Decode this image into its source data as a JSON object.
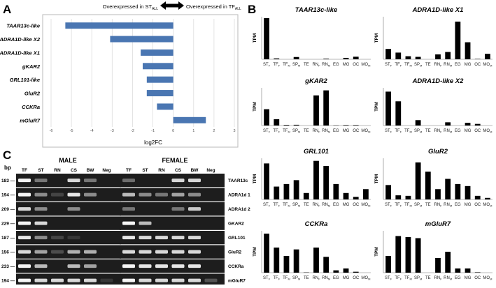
{
  "panelA": {
    "letter": "A",
    "legend_left": "Overexpressed in ST",
    "legend_left_sub": "ALL",
    "legend_right": "Overexpressed in TF",
    "legend_right_sub": "ALL",
    "xlabel": "log2FC",
    "chart_data": {
      "type": "bar",
      "orientation": "horizontal",
      "categories": [
        "TAAR13c-like",
        "ADRA1D-like X2",
        "ADRA1D-like X1",
        "gKAR2",
        "GRL101-like",
        "GluR2",
        "CCKRa",
        "mGluR7"
      ],
      "values": [
        -5.3,
        -3.1,
        -1.6,
        -1.5,
        -1.3,
        -1.3,
        -0.8,
        1.6
      ],
      "xlim": [
        -6,
        3
      ],
      "xticks": [
        "-6",
        "-5",
        "-4",
        "-3",
        "-2",
        "-1",
        "0",
        "1",
        "2",
        "3"
      ],
      "color": "#4a76b2",
      "grid": true
    }
  },
  "panelB": {
    "letter": "B",
    "ylabel": "TPM",
    "xlabels": [
      "ST",
      "TF",
      "TF",
      "SP",
      "TE",
      "RN",
      "RN",
      "EG",
      "MG",
      "OC",
      "MO"
    ],
    "xlabel_subs": [
      "F",
      "F",
      "M",
      "M",
      "",
      "F",
      "M",
      "",
      "",
      "",
      "M"
    ],
    "bar_color": "#000000",
    "charts": [
      {
        "title": "TAAR13c-like",
        "values": [
          14.5,
          0.3,
          0,
          0.8,
          0,
          0,
          0.2,
          0,
          0.5,
          0.9,
          0
        ],
        "ymax": 15
      },
      {
        "title": "ADRA1D-like X1",
        "values": [
          8.5,
          5.5,
          2.5,
          2,
          0,
          4,
          6,
          31,
          14,
          0.3,
          4.5
        ],
        "ymax": 35
      },
      {
        "title": "gKAR2",
        "values": [
          13,
          5,
          0.5,
          0.6,
          0,
          24,
          28,
          0.2,
          0.4,
          0.4,
          0
        ],
        "ymax": 30
      },
      {
        "title": "ADRA1D-like X2",
        "values": [
          6.3,
          4.5,
          0,
          1,
          0,
          0,
          0.6,
          0,
          0.5,
          0.3,
          0
        ],
        "ymax": 7
      },
      {
        "title": "GRL101",
        "values": [
          14,
          5,
          6,
          7.5,
          2.5,
          15,
          13,
          6,
          2.5,
          1,
          4
        ],
        "ymax": 16
      },
      {
        "title": "GluR2",
        "values": [
          14,
          4,
          3.5,
          36,
          27,
          10,
          20,
          15,
          13,
          3.5,
          1.5
        ],
        "ymax": 40
      },
      {
        "title": "CCKRa",
        "values": [
          42,
          27,
          18,
          25,
          0.3,
          27,
          17,
          2.5,
          4.5,
          1,
          0
        ],
        "ymax": 45
      },
      {
        "title": "mGluR7",
        "values": [
          8,
          17.5,
          17,
          16.5,
          0,
          7,
          10,
          2,
          2,
          0.2,
          0
        ],
        "ymax": 20
      }
    ]
  },
  "panelC": {
    "letter": "C",
    "bp_label": "bp",
    "male_title": "MALE",
    "female_title": "FEMALE",
    "lanes": [
      "TF",
      "ST",
      "RN",
      "CS",
      "BW",
      "Neg"
    ],
    "rows": [
      {
        "bp": "183",
        "gene": "TAAR13c",
        "male": [
          1,
          0.5,
          0,
          0.9,
          0.5,
          0
        ],
        "female": [
          0.45,
          0,
          0,
          0.9,
          0.9,
          0
        ]
      },
      {
        "bp": "194",
        "gene": "ADRA1d  1",
        "male": [
          1,
          0.6,
          0.2,
          0.95,
          0.6,
          0
        ],
        "female": [
          0.8,
          0.6,
          0.5,
          0.7,
          0.6,
          0
        ]
      },
      {
        "bp": "209",
        "gene": "ADRA1d  2",
        "male": [
          0.9,
          0.6,
          0,
          0.6,
          0,
          0
        ],
        "female": [
          0.5,
          0,
          0,
          0.5,
          0.85,
          0
        ]
      },
      {
        "bp": "229",
        "gene": "GKAR2",
        "male": [
          1,
          0.9,
          0,
          0,
          0,
          0
        ],
        "female": [
          1,
          0.8,
          0,
          0,
          0,
          0
        ]
      },
      {
        "bp": "187",
        "gene": "GRL101",
        "male": [
          0.95,
          0.6,
          0.2,
          0.1,
          0,
          0
        ],
        "female": [
          0.95,
          0.9,
          0.9,
          0.9,
          0.9,
          0
        ]
      },
      {
        "bp": "156",
        "gene": "GluR2",
        "male": [
          0.9,
          0.7,
          0.25,
          0.75,
          0.75,
          0
        ],
        "female": [
          0.9,
          0.9,
          0.9,
          0.9,
          0.9,
          0
        ]
      },
      {
        "bp": "233",
        "gene": "CCKRa",
        "male": [
          1,
          0.8,
          0,
          0.8,
          0.7,
          0
        ],
        "female": [
          1,
          0.95,
          0.95,
          0.95,
          0.95,
          0
        ]
      },
      {
        "bp": "194",
        "gene": "mGluR7",
        "male": [
          1,
          0.9,
          0.9,
          0.9,
          0.9,
          0.1
        ],
        "female": [
          1,
          0.9,
          0.9,
          0.9,
          0.9,
          0.3
        ]
      }
    ]
  }
}
